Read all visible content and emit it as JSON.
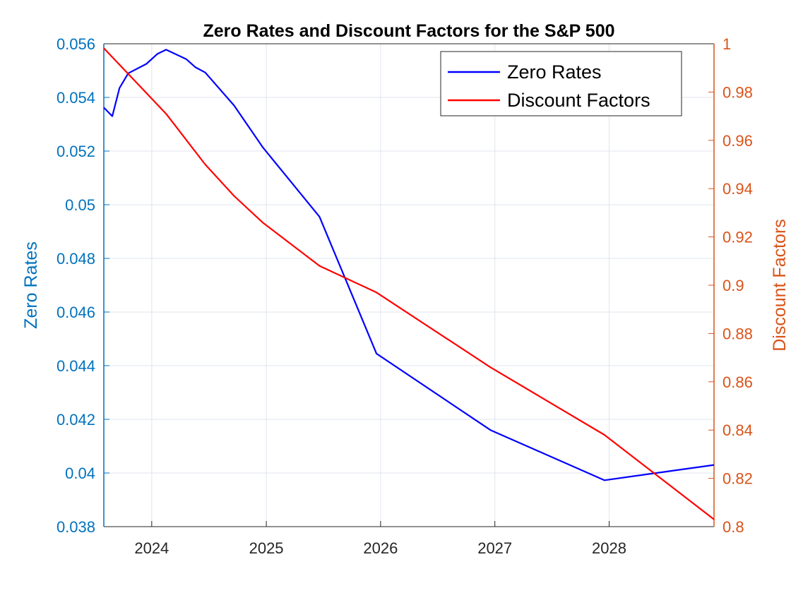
{
  "chart_data": {
    "type": "line",
    "title": "Zero Rates and Discount Factors for the S&P 500",
    "ylabel_left": "Zero Rates",
    "ylabel_right": "Discount Factors",
    "xlabel": "",
    "xlim": [
      "2023-08-01",
      "2028-12-01"
    ],
    "x_ticks": [
      "2024",
      "2025",
      "2026",
      "2027",
      "2028"
    ],
    "ylim_left": [
      0.038,
      0.056
    ],
    "yticks_left": [
      "0.038",
      "0.04",
      "0.042",
      "0.044",
      "0.046",
      "0.048",
      "0.05",
      "0.052",
      "0.054",
      "0.056"
    ],
    "ylim_right": [
      0.8,
      1.0
    ],
    "yticks_right": [
      "0.8",
      "0.82",
      "0.84",
      "0.86",
      "0.88",
      "0.9",
      "0.92",
      "0.94",
      "0.96",
      "0.98",
      "1"
    ],
    "grid": true,
    "legend_position": "top-right",
    "series": [
      {
        "name": "Zero Rates",
        "axis": "left",
        "color": "#0000ff",
        "points": [
          {
            "x": "2023-08-01",
            "y": 0.05362
          },
          {
            "x": "2023-08-28",
            "y": 0.0533
          },
          {
            "x": "2023-09-20",
            "y": 0.05435
          },
          {
            "x": "2023-10-18",
            "y": 0.0549
          },
          {
            "x": "2023-12-15",
            "y": 0.05525
          },
          {
            "x": "2024-01-19",
            "y": 0.05562
          },
          {
            "x": "2024-02-16",
            "y": 0.05578
          },
          {
            "x": "2024-04-20",
            "y": 0.05543
          },
          {
            "x": "2024-05-20",
            "y": 0.05512
          },
          {
            "x": "2024-06-20",
            "y": 0.05493
          },
          {
            "x": "2024-09-20",
            "y": 0.0537
          },
          {
            "x": "2024-12-20",
            "y": 0.05215
          },
          {
            "x": "2025-06-20",
            "y": 0.04955
          },
          {
            "x": "2025-12-19",
            "y": 0.04445
          },
          {
            "x": "2026-12-18",
            "y": 0.0416
          },
          {
            "x": "2027-12-17",
            "y": 0.03973
          },
          {
            "x": "2028-12-01",
            "y": 0.0403
          }
        ]
      },
      {
        "name": "Discount Factors",
        "axis": "right",
        "color": "#ff0000",
        "points": [
          {
            "x": "2023-08-01",
            "y": 0.9982
          },
          {
            "x": "2024-02-16",
            "y": 0.971
          },
          {
            "x": "2024-06-20",
            "y": 0.95
          },
          {
            "x": "2024-09-20",
            "y": 0.937
          },
          {
            "x": "2024-12-20",
            "y": 0.926
          },
          {
            "x": "2025-06-20",
            "y": 0.908
          },
          {
            "x": "2025-12-19",
            "y": 0.897
          },
          {
            "x": "2026-12-18",
            "y": 0.866
          },
          {
            "x": "2027-12-17",
            "y": 0.838
          },
          {
            "x": "2028-12-01",
            "y": 0.803
          }
        ]
      }
    ]
  }
}
